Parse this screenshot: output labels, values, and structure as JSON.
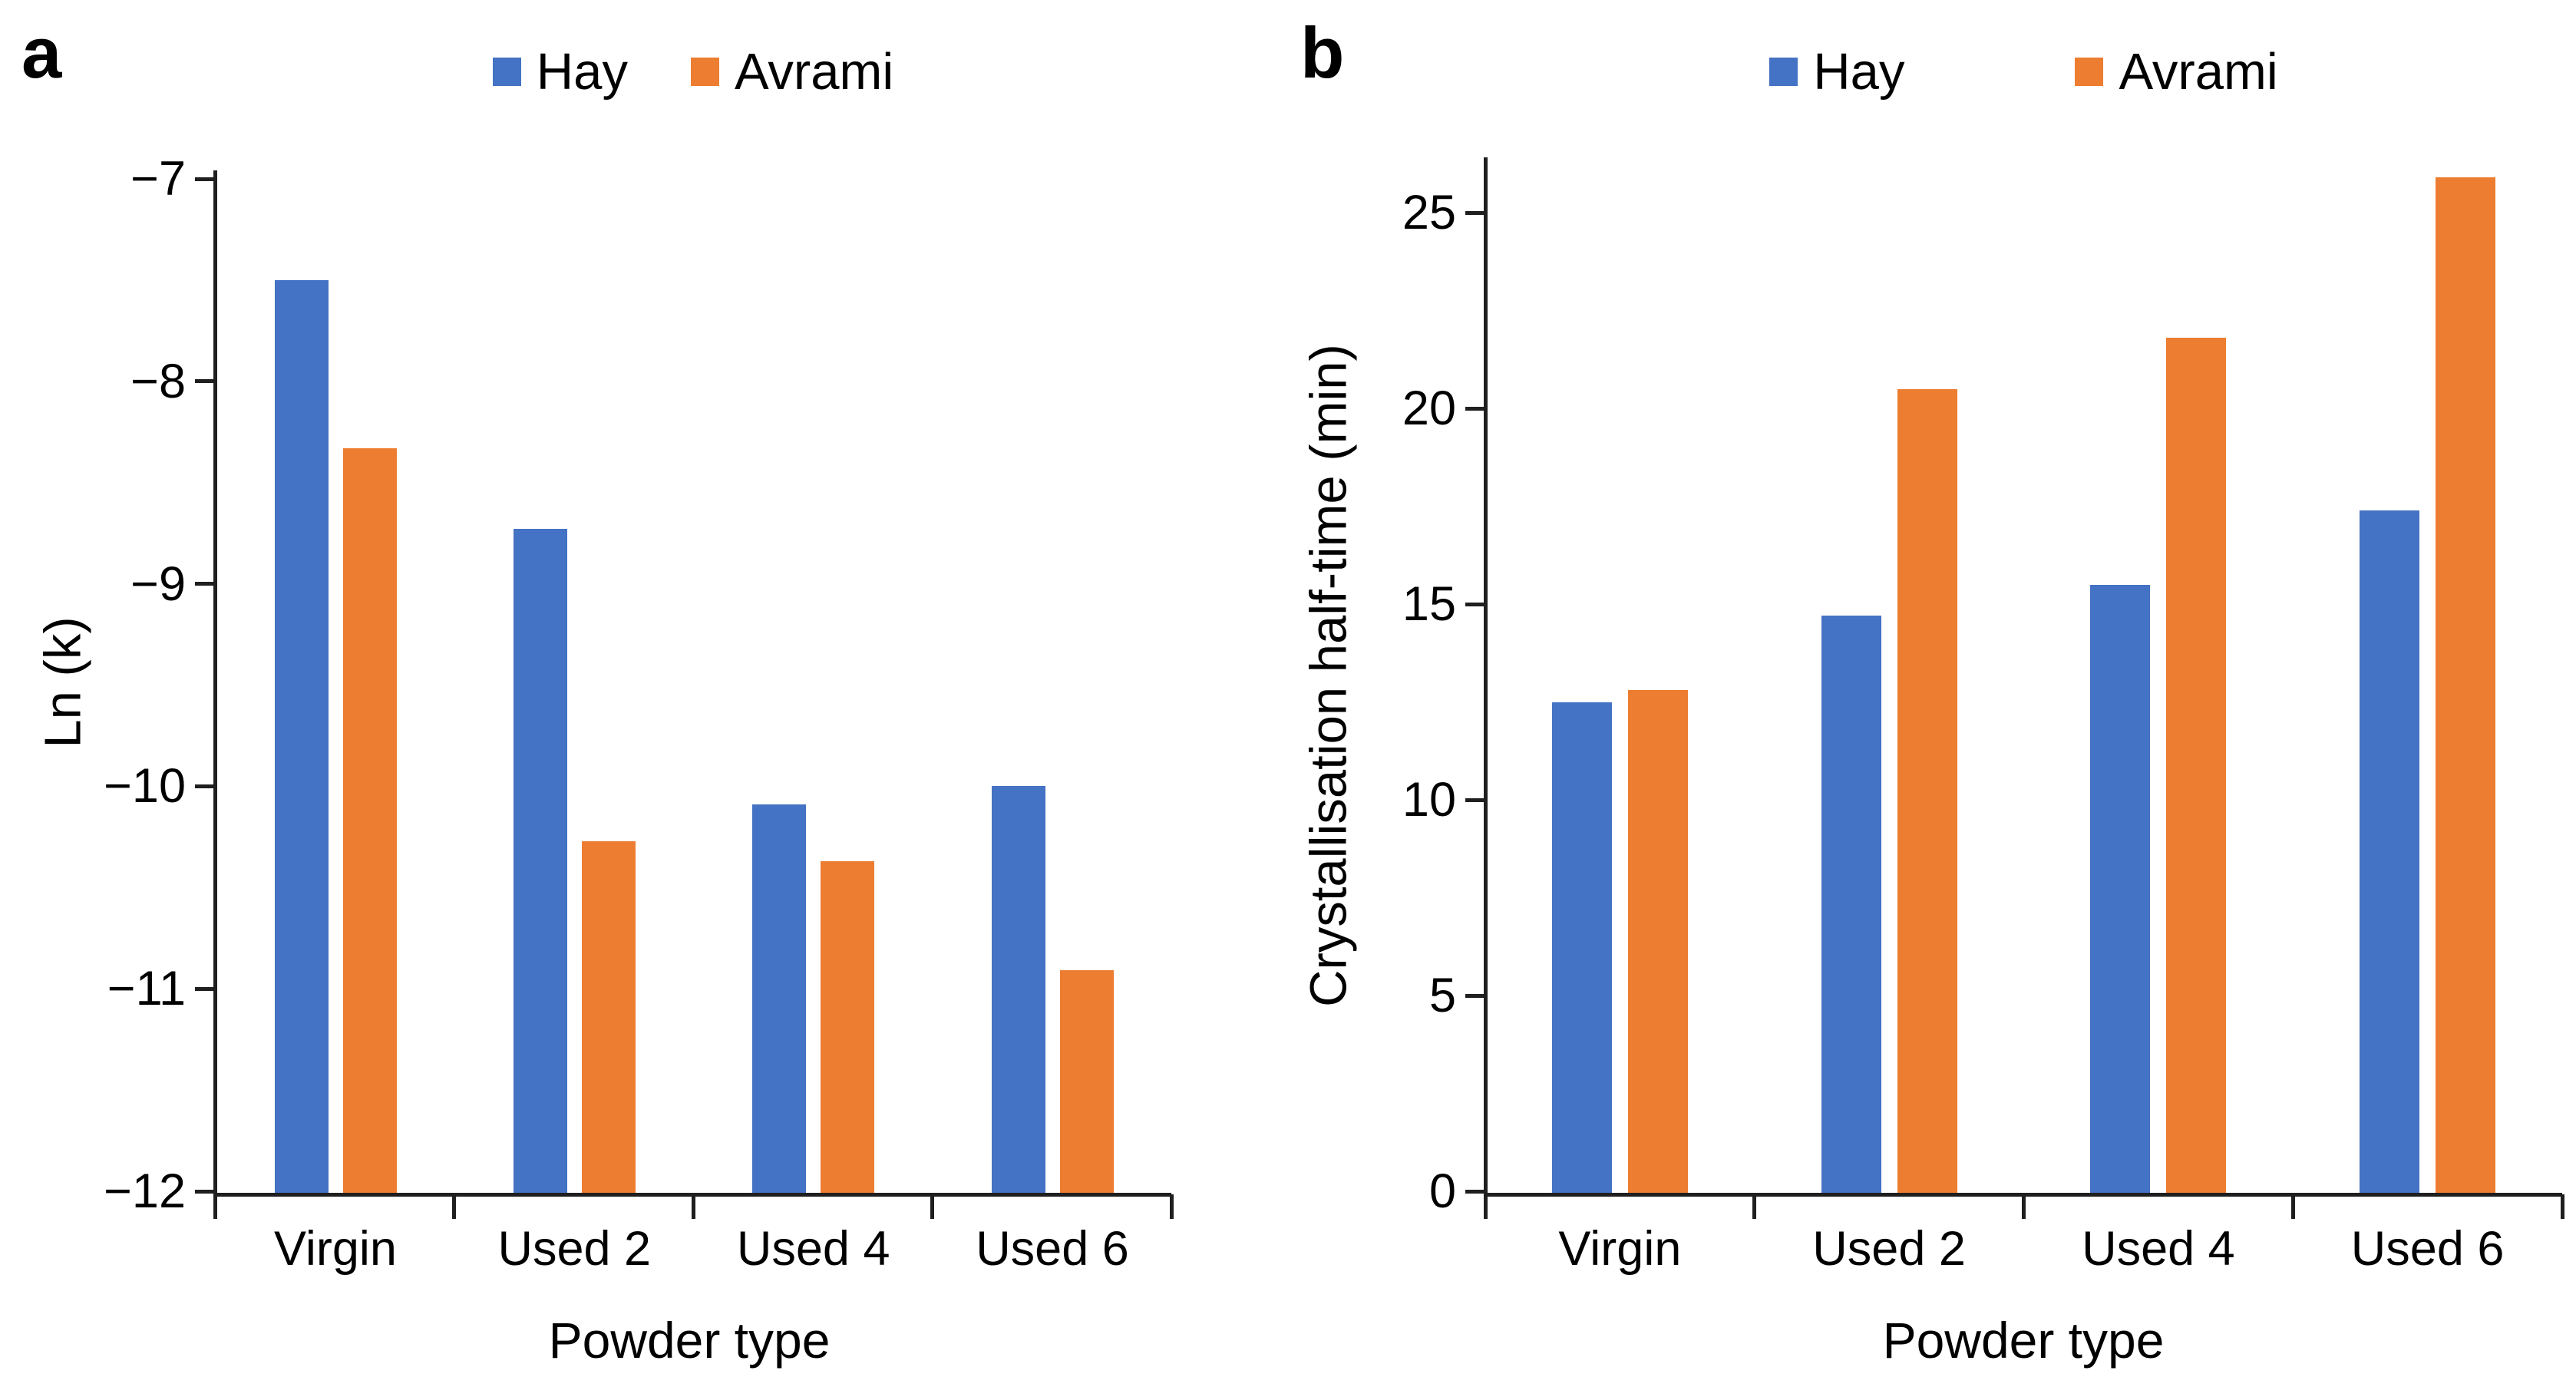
{
  "figure_type": "two-panel grouped bar chart",
  "panels": {
    "a_letter": "a",
    "b_letter": "b"
  },
  "colors": {
    "hay_blue": "#4472C4",
    "avrami_orange": "#ED7D31",
    "axis": "#1f1f1f"
  },
  "chart_data": [
    {
      "type": "bar",
      "panel_letter": "a",
      "title": "",
      "categories": [
        "Virgin",
        "Used 2",
        "Used 4",
        "Used 6"
      ],
      "series": [
        {
          "name": "Hay",
          "color": "#4472C4",
          "values": [
            -7.5,
            -8.73,
            -10.09,
            -10.0
          ]
        },
        {
          "name": "Avrami",
          "color": "#ED7D31",
          "values": [
            -8.33,
            -10.27,
            -10.37,
            -10.91
          ]
        }
      ],
      "xlabel": "Powder type",
      "ylabel": "Ln (k)",
      "ylim": [
        -12,
        -7
      ],
      "bar_baseline": -12,
      "yticks": [
        -7,
        -8,
        -9,
        -10,
        -11,
        -12
      ],
      "ytick_labels": [
        "−7",
        "−8",
        "−9",
        "−10",
        "−11",
        "−12"
      ],
      "grid": false,
      "legend_position": "top-center"
    },
    {
      "type": "bar",
      "panel_letter": "b",
      "title": "",
      "categories": [
        "Virgin",
        "Used 2",
        "Used 4",
        "Used 6"
      ],
      "series": [
        {
          "name": "Hay",
          "color": "#4472C4",
          "values": [
            12.5,
            14.7,
            15.5,
            17.4
          ]
        },
        {
          "name": "Avrami",
          "color": "#ED7D31",
          "values": [
            12.8,
            20.5,
            21.8,
            25.9
          ]
        }
      ],
      "xlabel": "Powder type",
      "ylabel": "Crystallisation half-time (min)",
      "ylim": [
        0,
        26.4
      ],
      "bar_baseline": 0,
      "yticks": [
        25,
        20,
        15,
        10,
        5,
        0
      ],
      "ytick_labels": [
        "25",
        "20",
        "15",
        "10",
        "5",
        "0"
      ],
      "grid": false,
      "legend_position": "top-center"
    }
  ]
}
